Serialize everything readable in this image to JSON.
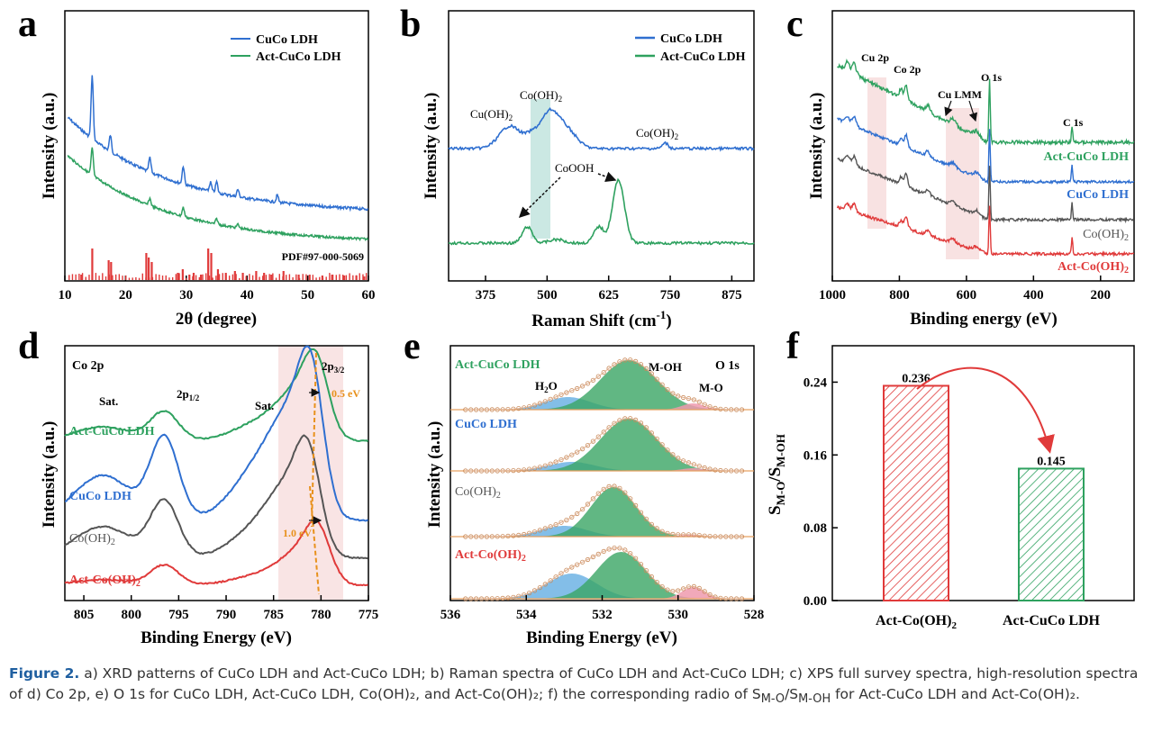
{
  "panels": {
    "a": {
      "letter": "a",
      "xlabel": "2θ (degree)",
      "ylabel": "Intensity (a.u.)",
      "xticks": [
        "10",
        "20",
        "30",
        "40",
        "50",
        "60"
      ],
      "xlim": [
        10,
        60
      ],
      "legend": [
        "CuCo LDH",
        "Act-CuCo LDH"
      ],
      "ref_label": "PDF#97-000-5069"
    },
    "b": {
      "letter": "b",
      "xlabel": "Raman Shift (cm",
      "xlabel_sup": "-1",
      "xlabel_end": ")",
      "ylabel": "Intensity (a.u.)",
      "xticks": [
        "375",
        "500",
        "625",
        "750",
        "875"
      ],
      "xlim": [
        300,
        920
      ],
      "legend": [
        "CuCo LDH",
        "Act-CuCo LDH"
      ],
      "annotations": [
        "Cu(OH)",
        "Co(OH)",
        "Co(OH)",
        "CoOOH"
      ],
      "sub2": "2"
    },
    "c": {
      "letter": "c",
      "xlabel": "Binding energy (eV)",
      "ylabel": "Intensity (a.u.)",
      "xticks": [
        "1000",
        "800",
        "600",
        "400",
        "200"
      ],
      "xlim": [
        1000,
        100
      ],
      "peaks": [
        "Cu 2p",
        "Co 2p",
        "O 1s",
        "Cu LMM",
        "C 1s"
      ],
      "labels": [
        "Act-CuCo LDH",
        "CuCo LDH",
        "Co(OH)",
        "Act-Co(OH)"
      ]
    },
    "d": {
      "letter": "d",
      "title": "Co 2p",
      "xlabel": "Binding Energy (eV)",
      "ylabel": "Intensity (a.u.)",
      "xticks": [
        "805",
        "800",
        "795",
        "790",
        "785",
        "780",
        "775"
      ],
      "xlim": [
        807,
        775
      ],
      "annotations": [
        "Sat.",
        "2p",
        "1/2",
        "Sat.",
        "2p",
        "3/2",
        "0.5 eV",
        "1.0 eV"
      ],
      "labels": [
        "Act-CuCo LDH",
        "CuCo LDH",
        "Co(OH)",
        "Act-Co(OH)"
      ]
    },
    "e": {
      "letter": "e",
      "title": "O 1s",
      "xlabel": "Binding Energy (eV)",
      "ylabel": "Intensity (a.u.)",
      "xticks": [
        "536",
        "534",
        "532",
        "530",
        "528"
      ],
      "xlim": [
        536,
        528
      ],
      "components": [
        "H",
        "O",
        "M-OH",
        "M-O"
      ],
      "labels": [
        "Act-CuCo LDH",
        "CuCo LDH",
        "Co(OH)",
        "Act-Co(OH)"
      ]
    },
    "f": {
      "letter": "f",
      "ylabel_main": "S",
      "ylabel_sub1": "M-O",
      "ylabel_mid": "/S",
      "ylabel_sub2": "M-OH",
      "yticks": [
        "0.00",
        "0.08",
        "0.16",
        "0.24"
      ],
      "ylim": [
        0,
        0.28
      ]
    }
  },
  "chart_data": [
    {
      "type": "line",
      "panel": "a",
      "xlabel": "2θ (degree)",
      "ylabel": "Intensity (a.u.)",
      "xlim": [
        10,
        60
      ],
      "series": [
        {
          "name": "CuCo LDH",
          "color": "#2f6fd0",
          "peaks": [
            14.5,
            17.5,
            24,
            29.5,
            35,
            38.5,
            45
          ]
        },
        {
          "name": "Act-CuCo LDH",
          "color": "#2ea15f",
          "peaks": [
            14.5,
            24,
            29.5,
            35
          ]
        }
      ]
    },
    {
      "type": "line",
      "panel": "b",
      "xlabel": "Raman Shift (cm-1)",
      "ylabel": "Intensity (a.u.)",
      "xlim": [
        300,
        920
      ],
      "series": [
        {
          "name": "CuCo LDH",
          "color": "#2f6fd0",
          "peaks": [
            425,
            510,
            735
          ]
        },
        {
          "name": "Act-CuCo LDH",
          "color": "#2ea15f",
          "peaks": [
            460,
            645
          ]
        }
      ]
    },
    {
      "type": "line",
      "panel": "c",
      "xlabel": "Binding energy (eV)",
      "ylabel": "Intensity (a.u.)",
      "xlim": [
        1000,
        100
      ],
      "series": [
        {
          "name": "Act-CuCo LDH",
          "color": "#2ea15f"
        },
        {
          "name": "CuCo LDH",
          "color": "#2f6fd0"
        },
        {
          "name": "Co(OH)2",
          "color": "#555555"
        },
        {
          "name": "Act-Co(OH)2",
          "color": "#e03a3a"
        }
      ]
    },
    {
      "type": "line",
      "panel": "d",
      "xlabel": "Binding Energy (eV)",
      "ylabel": "Intensity (a.u.)",
      "xlim": [
        807,
        775
      ],
      "series": [
        {
          "name": "Act-CuCo LDH",
          "color": "#2ea15f",
          "peak": 780.5
        },
        {
          "name": "CuCo LDH",
          "color": "#2f6fd0",
          "peak": 781
        },
        {
          "name": "Co(OH)2",
          "color": "#555555",
          "peak": 781.3
        },
        {
          "name": "Act-Co(OH)2",
          "color": "#e03a3a",
          "peak": 780.3
        }
      ]
    },
    {
      "type": "area",
      "panel": "e",
      "xlabel": "Binding Energy (eV)",
      "ylabel": "Intensity (a.u.)",
      "xlim": [
        536,
        528
      ],
      "series": [
        {
          "name": "Act-CuCo LDH",
          "color": "#2ea15f"
        },
        {
          "name": "CuCo LDH",
          "color": "#2f6fd0"
        },
        {
          "name": "Co(OH)2",
          "color": "#555555"
        },
        {
          "name": "Act-Co(OH)2",
          "color": "#e03a3a"
        }
      ]
    },
    {
      "type": "bar",
      "panel": "f",
      "categories": [
        "Act-Co(OH)2",
        "Act-CuCo LDH"
      ],
      "values": [
        0.236,
        0.145
      ],
      "value_labels": [
        "0.236",
        "0.145"
      ],
      "colors": [
        "#e03a3a",
        "#2ea15f"
      ],
      "ylim": [
        0,
        0.28
      ],
      "ylabel": "SM-O/SM-OH"
    }
  ],
  "caption": {
    "label": "Figure 2.",
    "text": " a) XRD patterns of CuCo LDH and Act-CuCo LDH; b) Raman spectra of CuCo LDH and Act-CuCo LDH; c) XPS full survey spectra, high-resolution spectra of d) Co 2p, e) O 1s for CuCo LDH, Act-CuCo LDH, Co(OH)₂, and Act-Co(OH)₂; f) the corresponding radio of S",
    "s1": "M-O",
    "mid": "/S",
    "s2": "M-OH",
    "end": " for Act-CuCo LDH and Act-Co(OH)₂."
  },
  "cat_sub": "2"
}
